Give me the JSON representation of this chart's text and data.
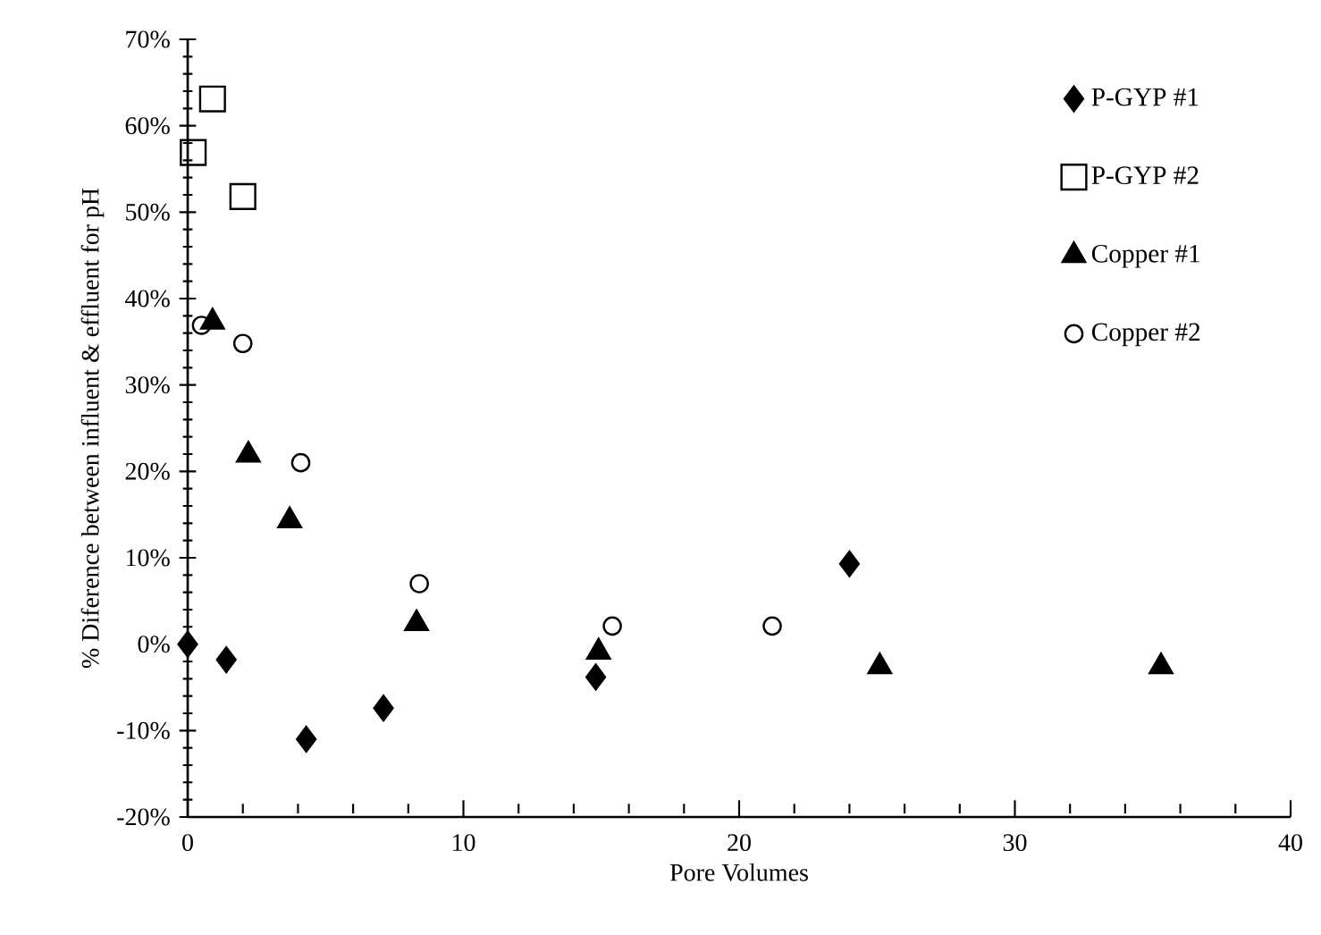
{
  "chart_data": {
    "type": "scatter",
    "xlabel": "Pore Volumes",
    "ylabel": "% Diference between influent & effluent for pH",
    "xlim": [
      0,
      40
    ],
    "xticks": [
      0,
      10,
      20,
      30,
      40
    ],
    "ylim": [
      -20,
      70
    ],
    "yticks": [
      {
        "value": -20,
        "label": "-20%"
      },
      {
        "value": -10,
        "label": "-10%"
      },
      {
        "value": 0,
        "label": "0%"
      },
      {
        "value": 10,
        "label": "10%"
      },
      {
        "value": 20,
        "label": "20%"
      },
      {
        "value": 30,
        "label": "30%"
      },
      {
        "value": 40,
        "label": "40%"
      },
      {
        "value": 50,
        "label": "50%"
      },
      {
        "value": 60,
        "label": "60%"
      },
      {
        "value": 70,
        "label": "70%"
      }
    ],
    "grid": false,
    "legend": "top right",
    "series": [
      {
        "name": "P-GYP #1",
        "color": "#000000",
        "marker": "diamond",
        "x": [
          0,
          1.4,
          4.3,
          7.1,
          14.8,
          24.0
        ],
        "values": [
          0,
          -1.8,
          -11,
          -7.4,
          -3.8,
          9.3
        ]
      },
      {
        "name": "P-GYP #2",
        "color": "#000000",
        "marker": "square",
        "x": [
          0.2,
          0.9,
          2.0
        ],
        "values": [
          56.9,
          63.1,
          51.8
        ]
      },
      {
        "name": "Copper #1",
        "color": "#000000",
        "marker": "triangle",
        "x": [
          0.9,
          2.2,
          3.7,
          8.3,
          14.9,
          25.1,
          35.3
        ],
        "values": [
          37.3,
          21.9,
          14.3,
          2.4,
          -0.9,
          -2.6,
          -2.6
        ]
      },
      {
        "name": "Copper #2",
        "color": "#000000",
        "marker": "circle",
        "x": [
          0.5,
          2.0,
          4.1,
          8.4,
          15.4,
          21.2
        ],
        "values": [
          36.9,
          34.8,
          21.0,
          7.0,
          2.1,
          2.1
        ]
      }
    ]
  }
}
